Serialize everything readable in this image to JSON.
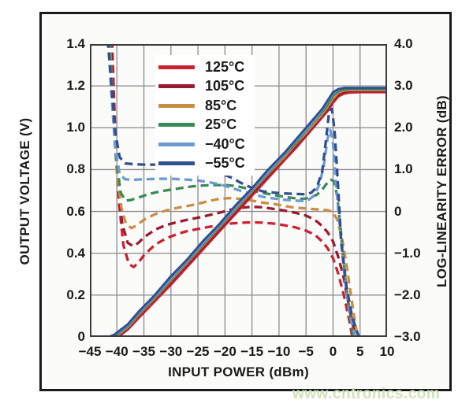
{
  "watermark": "www.cntronics.com",
  "chart_data": {
    "type": "line",
    "title": "",
    "xlabel": "INPUT POWER (dBm)",
    "ylabel_left": "OUTPUT VOLTAGE (V)",
    "ylabel_right": "LOG-LINEARITY ERROR (dB)",
    "xlim": [
      -45,
      10
    ],
    "ylim_left": [
      0,
      1.4
    ],
    "ylim_right": [
      -3,
      4
    ],
    "grid": true,
    "legend_position": "upper-left-inside",
    "x_ticks": [
      "−45",
      "−40",
      "−35",
      "−30",
      "−25",
      "−20",
      "−15",
      "−10",
      "−5",
      "0",
      "5",
      "10"
    ],
    "y_left_ticks": [
      "1.4",
      "1.2",
      "1.0",
      "0.8",
      "0.6",
      "0.4",
      "0.2",
      "0"
    ],
    "y_right_ticks": [
      "4.0",
      "3.0",
      "2.0",
      "1.0",
      "0",
      "−1.0",
      "−2.0",
      "−3.0"
    ],
    "x_gridlines": [
      -40,
      -35,
      -30,
      -25,
      -20,
      -15,
      -10,
      -5,
      0,
      5
    ],
    "y_gridlines_left": [
      0.2,
      0.4,
      0.6,
      0.8,
      1.0,
      1.2
    ],
    "colors": {
      "grid": "#8a8a8a",
      "plot_border": "#3c3c3c",
      "frame_border": "#1b1b1b",
      "text": "#1a1a1a",
      "watermark": "#cfe2b8"
    },
    "voltage_x": [
      -45,
      -41.5,
      -40.5,
      -39.5,
      -38,
      -36,
      -33,
      -30,
      -27,
      -24,
      -21,
      -18,
      -15,
      -12,
      -9,
      -7,
      -5,
      -4,
      -3,
      -2,
      -1,
      0,
      1,
      2,
      3,
      5,
      10
    ],
    "series": [
      {
        "id": "125c",
        "label": "125°C",
        "color": "#cc2132",
        "voltage": [
          0,
          0,
          0,
          0.005,
          0.035,
          0.09,
          0.17,
          0.25,
          0.335,
          0.42,
          0.505,
          0.59,
          0.675,
          0.76,
          0.845,
          0.9,
          0.96,
          0.99,
          1.02,
          1.05,
          1.08,
          1.12,
          1.15,
          1.163,
          1.168,
          1.17,
          1.17
        ],
        "error": {
          "x": [
            -40.9,
            -40.3,
            -39.6,
            -38.8,
            -37.8,
            -36.9,
            -36,
            -35,
            -33,
            -31,
            -29,
            -27,
            -25,
            -23,
            -21,
            -19,
            -17,
            -15,
            -13,
            -11,
            -9,
            -7,
            -5,
            -4,
            -3,
            -2,
            -1,
            0,
            1,
            2,
            3,
            3.7
          ],
          "y": [
            4.1,
            1.9,
            0.2,
            -0.8,
            -1.25,
            -1.33,
            -1.22,
            -1.05,
            -0.8,
            -0.65,
            -0.55,
            -0.47,
            -0.42,
            -0.37,
            -0.33,
            -0.29,
            -0.27,
            -0.26,
            -0.27,
            -0.29,
            -0.33,
            -0.38,
            -0.46,
            -0.52,
            -0.6,
            -0.72,
            -0.88,
            -1.12,
            -1.5,
            -2.0,
            -2.6,
            -3.1
          ]
        }
      },
      {
        "id": "105c",
        "label": "105°C",
        "color": "#9c1a31",
        "voltage": [
          0,
          0,
          0,
          0.01,
          0.04,
          0.1,
          0.18,
          0.26,
          0.345,
          0.43,
          0.515,
          0.6,
          0.685,
          0.77,
          0.855,
          0.91,
          0.967,
          0.997,
          1.027,
          1.057,
          1.09,
          1.13,
          1.158,
          1.17,
          1.175,
          1.175,
          1.175
        ],
        "error": {
          "x": [
            -41.1,
            -40.5,
            -39.8,
            -39,
            -38,
            -37,
            -36,
            -35,
            -33,
            -31,
            -29,
            -27,
            -25,
            -23,
            -21,
            -19,
            -17,
            -15,
            -13,
            -11,
            -9,
            -7,
            -5,
            -4,
            -3,
            -2,
            -1,
            0,
            1,
            2,
            3,
            4,
            4.4
          ],
          "y": [
            4.1,
            2.1,
            0.6,
            -0.3,
            -0.75,
            -0.83,
            -0.75,
            -0.62,
            -0.44,
            -0.33,
            -0.26,
            -0.2,
            -0.15,
            -0.09,
            -0.03,
            0.04,
            0.09,
            0.11,
            0.1,
            0.06,
            0.02,
            -0.03,
            -0.1,
            -0.16,
            -0.24,
            -0.35,
            -0.5,
            -0.72,
            -1.1,
            -1.6,
            -2.3,
            -2.9,
            -3.1
          ]
        }
      },
      {
        "id": "85c",
        "label": "85°C",
        "color": "#c98e44",
        "voltage": [
          0,
          0,
          0,
          0.015,
          0.045,
          0.105,
          0.185,
          0.27,
          0.355,
          0.44,
          0.525,
          0.61,
          0.695,
          0.78,
          0.86,
          0.92,
          0.975,
          1.005,
          1.035,
          1.065,
          1.1,
          1.14,
          1.168,
          1.178,
          1.18,
          1.18,
          1.18
        ],
        "error": {
          "x": [
            -41.3,
            -40.7,
            -40,
            -39.2,
            -38.3,
            -37.3,
            -36.3,
            -35,
            -33,
            -31,
            -29,
            -27,
            -25,
            -23,
            -21,
            -19,
            -17,
            -15,
            -13,
            -11,
            -9,
            -7,
            -5,
            -3,
            -1,
            0,
            0.8,
            1.6,
            2.4,
            3.2,
            4,
            4.7
          ],
          "y": [
            4.1,
            2.3,
            0.9,
            0.1,
            -0.3,
            -0.4,
            -0.33,
            -0.2,
            -0.07,
            0.02,
            0.08,
            0.13,
            0.18,
            0.25,
            0.3,
            0.32,
            0.3,
            0.26,
            0.21,
            0.18,
            0.13,
            0.09,
            0.07,
            0.05,
            0.03,
            -0.02,
            -0.2,
            -0.6,
            -1.2,
            -1.9,
            -2.6,
            -3.1
          ]
        }
      },
      {
        "id": "25c",
        "label": "25°C",
        "color": "#3a8a55",
        "voltage": [
          0,
          0,
          0.005,
          0.02,
          0.05,
          0.11,
          0.19,
          0.275,
          0.36,
          0.445,
          0.53,
          0.615,
          0.7,
          0.785,
          0.87,
          0.925,
          0.985,
          1.015,
          1.045,
          1.075,
          1.11,
          1.155,
          1.175,
          1.183,
          1.185,
          1.185,
          1.185
        ],
        "error": {
          "x": [
            -41.4,
            -40.8,
            -40.1,
            -39.3,
            -38.4,
            -37.5,
            -36,
            -34,
            -32,
            -30,
            -28,
            -26,
            -24,
            -22,
            -20,
            -18,
            -16,
            -14,
            -12,
            -10,
            -8,
            -6,
            -5,
            -4,
            -3,
            -2,
            -1.2,
            -0.4,
            0.2,
            0.8,
            1.4,
            2,
            3,
            3.9
          ],
          "y": [
            4.1,
            2.5,
            1.2,
            0.45,
            0.26,
            0.27,
            0.33,
            0.42,
            0.48,
            0.52,
            0.56,
            0.6,
            0.62,
            0.63,
            0.63,
            0.61,
            0.55,
            0.47,
            0.42,
            0.37,
            0.33,
            0.3,
            0.31,
            0.34,
            0.4,
            0.52,
            0.66,
            0.76,
            0.72,
            0.35,
            -0.4,
            -1.3,
            -2.4,
            -3.1
          ]
        }
      },
      {
        "id": "m40c",
        "label": "−40°C",
        "color": "#6d9ad3",
        "voltage": [
          0,
          0,
          0.01,
          0.025,
          0.055,
          0.115,
          0.195,
          0.28,
          0.365,
          0.45,
          0.535,
          0.62,
          0.705,
          0.79,
          0.875,
          0.935,
          0.99,
          1.02,
          1.05,
          1.085,
          1.125,
          1.165,
          1.183,
          1.19,
          1.19,
          1.19,
          1.19
        ],
        "error": {
          "x": [
            -41.6,
            -41,
            -40.3,
            -39.5,
            -38.5,
            -37,
            -35,
            -32,
            -30,
            -27,
            -25,
            -23,
            -21,
            -19,
            -17,
            -15,
            -13,
            -11,
            -9,
            -7,
            -5.5,
            -4.5,
            -3.5,
            -2.5,
            -1.7,
            -1,
            -0.5,
            0,
            0.6,
            1.2,
            2,
            3,
            4,
            4.7
          ],
          "y": [
            4.1,
            2.8,
            1.5,
            0.9,
            0.77,
            0.755,
            0.77,
            0.78,
            0.78,
            0.76,
            0.74,
            0.7,
            0.65,
            0.57,
            0.49,
            0.42,
            0.35,
            0.31,
            0.28,
            0.26,
            0.25,
            0.28,
            0.38,
            0.65,
            1.1,
            1.75,
            1.95,
            1.6,
            0.6,
            -0.3,
            -1.4,
            -2.4,
            -2.95,
            -3.1
          ]
        }
      },
      {
        "id": "m55c",
        "label": "−55°C",
        "color": "#30508f",
        "voltage": [
          0,
          0,
          0.01,
          0.03,
          0.06,
          0.12,
          0.2,
          0.29,
          0.37,
          0.46,
          0.54,
          0.63,
          0.71,
          0.8,
          0.88,
          0.94,
          1.0,
          1.03,
          1.06,
          1.09,
          1.13,
          1.17,
          1.185,
          1.19,
          1.19,
          1.19,
          1.19
        ],
        "error": {
          "x": [
            -41.7,
            -41,
            -40.3,
            -39.5,
            -38.5,
            -37,
            -35,
            -32,
            -30,
            -27,
            -25,
            -23,
            -21,
            -19,
            -17,
            -15,
            -13,
            -11,
            -9,
            -7,
            -5,
            -4,
            -3,
            -2,
            -1.3,
            -0.7,
            -0.2,
            0.3,
            0.8,
            1.5,
            2.5,
            3.5,
            4.5,
            5.1
          ],
          "y": [
            4.1,
            3.0,
            1.9,
            1.3,
            1.15,
            1.13,
            1.12,
            1.12,
            1.1,
            1.08,
            1.02,
            0.97,
            0.92,
            0.82,
            0.68,
            0.56,
            0.48,
            0.45,
            0.43,
            0.42,
            0.41,
            0.45,
            0.58,
            0.95,
            1.7,
            2.42,
            2.45,
            1.9,
            0.9,
            -0.7,
            -1.8,
            -2.5,
            -2.9,
            -3.1
          ]
        }
      }
    ]
  }
}
